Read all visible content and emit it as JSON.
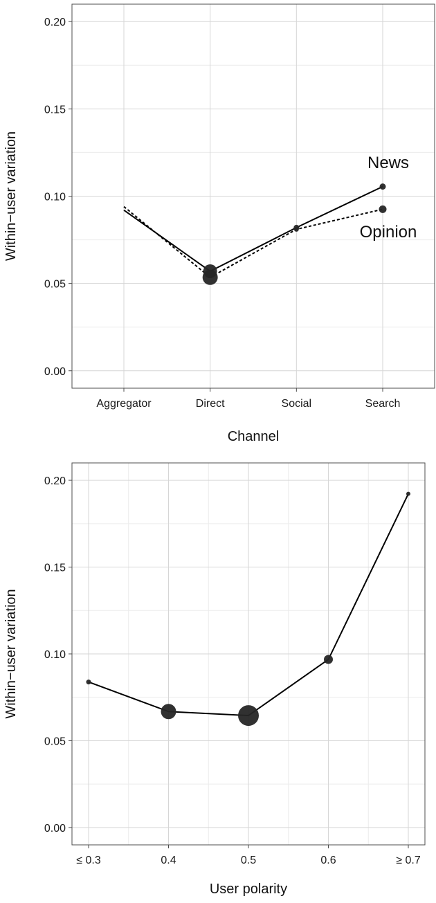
{
  "chart_data": [
    {
      "type": "line",
      "xlabel": "Channel",
      "ylabel": "Within−user variation",
      "categories": [
        "Aggregator",
        "Direct",
        "Social",
        "Search"
      ],
      "ylim": [
        -0.01,
        0.21
      ],
      "yticks": [
        "0.00",
        "0.05",
        "0.10",
        "0.15",
        "0.20"
      ],
      "ytick_values": [
        0,
        0.05,
        0.1,
        0.15,
        0.2
      ],
      "grid": true,
      "series": [
        {
          "name": "News",
          "values": [
            0.092,
            0.057,
            0.082,
            0.1055
          ],
          "line_style": "solid",
          "point_sizes": [
            0,
            10,
            4,
            4.5
          ]
        },
        {
          "name": "Opinion",
          "values": [
            0.094,
            0.0535,
            0.081,
            0.0925
          ],
          "line_style": "dashed",
          "point_sizes": [
            0,
            11,
            3.5,
            5.5
          ]
        }
      ]
    },
    {
      "type": "line",
      "xlabel": "User polarity",
      "ylabel": "Within−user variation",
      "categories": [
        "≤ 0.3",
        "0.4",
        "0.5",
        "0.6",
        "≥ 0.7"
      ],
      "ylim": [
        -0.01,
        0.21
      ],
      "yticks": [
        "0.00",
        "0.05",
        "0.10",
        "0.15",
        "0.20"
      ],
      "ytick_values": [
        0,
        0.05,
        0.1,
        0.15,
        0.2
      ],
      "grid": true,
      "series": [
        {
          "values": [
            0.0838,
            0.0668,
            0.0645,
            0.0968,
            0.1922
          ],
          "line_style": "solid",
          "point_sizes": [
            3.5,
            11,
            15,
            6.5,
            3
          ]
        }
      ]
    }
  ],
  "colors": {
    "line": "#000000",
    "point": "#262626",
    "grid_major": "#d6d6d6",
    "grid_minor": "#ececec",
    "panel_border": "#4d4d4d"
  }
}
